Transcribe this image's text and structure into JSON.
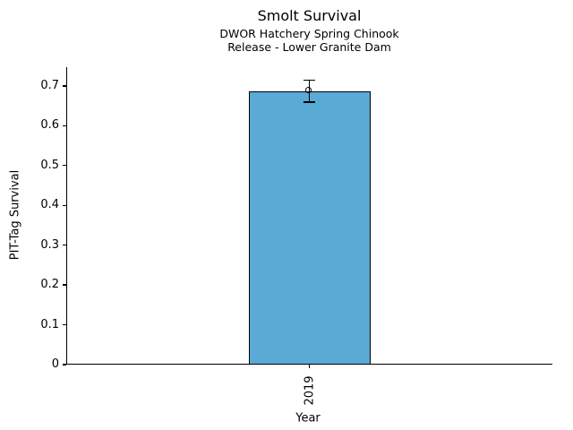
{
  "chart_data": {
    "type": "bar",
    "title": "Smolt Survival",
    "subtitle_lines": [
      "DWOR Hatchery Spring Chinook",
      "Release - Lower Granite Dam"
    ],
    "xlabel": "Year",
    "ylabel": "PIT-Tag Survival",
    "categories": [
      "2019"
    ],
    "values": [
      0.687
    ],
    "error_low": [
      0.659
    ],
    "error_high": [
      0.714
    ],
    "yticks": {
      "labels": [
        "0",
        "0.1",
        "0.2",
        "0.3",
        "0.4",
        "0.5",
        "0.6",
        "0.7"
      ],
      "values": [
        0,
        0.1,
        0.2,
        0.3,
        0.4,
        0.5,
        0.6,
        0.7
      ]
    },
    "ylim": [
      0,
      0.747
    ],
    "grid": false,
    "legend": null,
    "marker": "open-circle",
    "colors": {
      "bar_fill": "#59AAD5",
      "bar_edge": "#000000",
      "error_bar": "#000000",
      "axis": "#000000",
      "text": "#000000",
      "background": "#ffffff"
    }
  }
}
